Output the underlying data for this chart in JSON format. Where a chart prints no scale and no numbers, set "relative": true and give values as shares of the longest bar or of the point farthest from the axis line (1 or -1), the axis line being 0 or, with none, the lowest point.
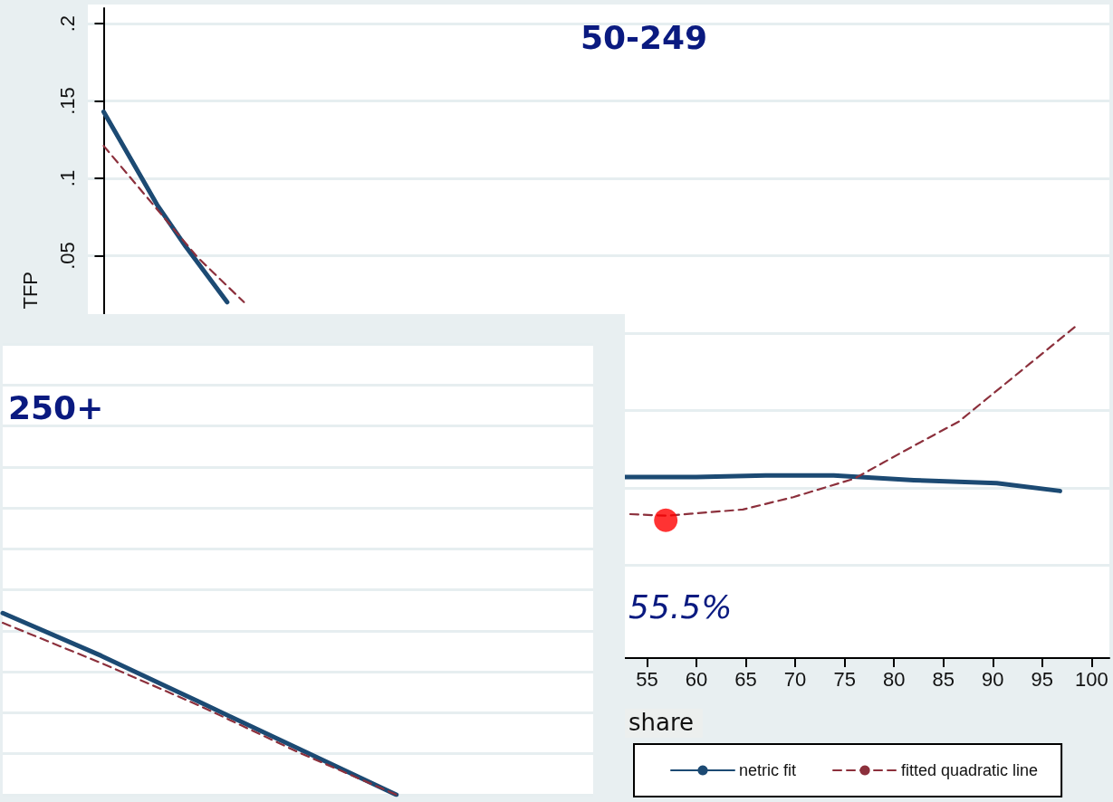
{
  "chart_data": [
    {
      "type": "line",
      "title": "50-249",
      "xlabel": "share",
      "ylabel": "TFP",
      "xlim": [
        -1.6,
        101.8
      ],
      "xticks": [
        55,
        60,
        65,
        70,
        75,
        80,
        85,
        90,
        95,
        100
      ],
      "ylim": [
        -0.21,
        0.21
      ],
      "yticks": [
        {
          "value": 0.2,
          "label": ".2"
        },
        {
          "value": 0.15,
          "label": ".15"
        },
        {
          "value": 0.1,
          "label": ".1"
        },
        {
          "value": 0.05,
          "label": ".05"
        },
        {
          "value": 0,
          "label": null
        },
        {
          "value": -0.05,
          "label": null
        },
        {
          "value": -0.1,
          "label": null
        },
        {
          "value": -0.15,
          "label": null
        }
      ],
      "grid": "y",
      "legend": "bottom",
      "marker": "none",
      "annotations": [
        "55.5%"
      ],
      "series": [
        {
          "name": "netric fit",
          "color": "#1c4a73",
          "line_style": "solid",
          "x": [
            0,
            5.4,
            8.3,
            12.5,
            30,
            52.7,
            60,
            67,
            73.9,
            82,
            90.4,
            96.8
          ],
          "values": [
            0.143,
            0.083,
            0.056,
            0.02,
            null,
            -0.093,
            -0.093,
            -0.092,
            -0.092,
            -0.095,
            -0.097,
            -0.102
          ]
        },
        {
          "name": "fitted quadratic line",
          "color": "#8c303c",
          "line_style": "dashed",
          "x": [
            0,
            9.5,
            14.2,
            30,
            53.3,
            57,
            64.7,
            69.8,
            76,
            80.8,
            86.6,
            93.7,
            98.5
          ],
          "values": [
            0.121,
            0.049,
            0.02,
            null,
            -0.117,
            -0.118,
            -0.114,
            -0.106,
            -0.094,
            -0.077,
            -0.057,
            -0.02,
            0.005
          ]
        },
        {
          "type": "scatter",
          "color": "#ff0000",
          "marker": "circle",
          "x": [
            56.9
          ],
          "values": [
            -0.121
          ]
        }
      ]
    },
    {
      "type": "line",
      "title": "250+",
      "relative": true,
      "categories": [
        null,
        null,
        null,
        null,
        null,
        null,
        null
      ],
      "grid": "y",
      "marker": "none",
      "series": [
        {
          "color": "#1c4a73",
          "line_style": "solid",
          "values": [
            1,
            0.765,
            0.51,
            0.255,
            0,
            null,
            null
          ]
        },
        {
          "color": "#8c303c",
          "line_style": "dashed",
          "values": [
            0.946,
            0.725,
            0.49,
            0.235,
            0,
            null,
            null
          ]
        }
      ]
    }
  ]
}
